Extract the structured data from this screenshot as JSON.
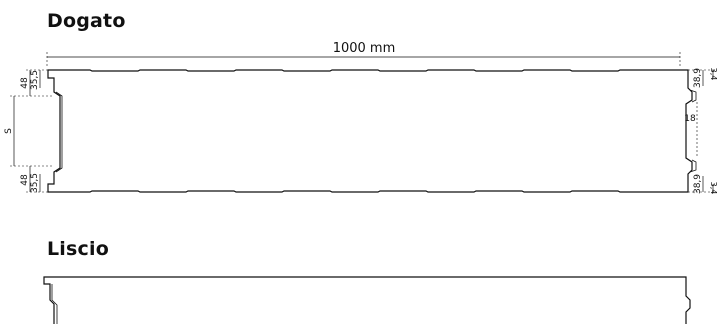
{
  "sections": {
    "dogato": {
      "title": "Dogato",
      "width_label": "1000 mm",
      "left_dims": {
        "top_outer": "48",
        "top_inner": "35,5",
        "thickness": "S",
        "bottom_outer": "48",
        "bottom_inner": "35,5"
      },
      "right_dims": {
        "top_outer": "38,9",
        "top_inner": "3,4",
        "gap": "18",
        "bottom_outer": "38,9",
        "bottom_inner": "3,4"
      }
    },
    "liscio": {
      "title": "Liscio"
    }
  }
}
